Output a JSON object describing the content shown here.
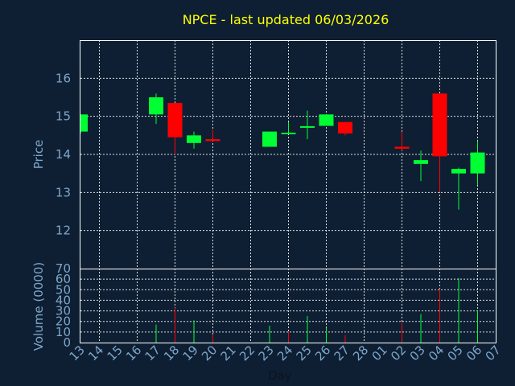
{
  "chart_data": {
    "type": "candlestick",
    "title": "NPCE - last updated 06/03/2026",
    "xlabel": "Day",
    "colors": {
      "background": "#0e1f33",
      "up": "#00ff33",
      "down": "#ff0000",
      "title": "#ffff00",
      "axis_text": "#7ea6c9",
      "grid": "#ffffff"
    },
    "categories": [
      "13",
      "14",
      "15",
      "16",
      "17",
      "18",
      "19",
      "20",
      "21",
      "22",
      "23",
      "24",
      "25",
      "26",
      "27",
      "28",
      "01",
      "02",
      "03",
      "04",
      "05",
      "06",
      "07"
    ],
    "price_panel": {
      "ylabel": "Price",
      "ylim": [
        11,
        17
      ],
      "yticks": [
        "12",
        "13",
        "14",
        "15",
        "16"
      ],
      "candles": [
        {
          "x": "13",
          "open": 14.6,
          "high": 15.05,
          "low": 14.55,
          "close": 15.05
        },
        {
          "x": "17",
          "open": 15.05,
          "high": 15.6,
          "low": 14.8,
          "close": 15.5
        },
        {
          "x": "18",
          "open": 15.35,
          "high": 15.35,
          "low": 14.0,
          "close": 14.45
        },
        {
          "x": "19",
          "open": 14.3,
          "high": 14.6,
          "low": 14.15,
          "close": 14.5
        },
        {
          "x": "20",
          "open": 14.4,
          "high": 14.65,
          "low": 14.35,
          "close": 14.35
        },
        {
          "x": "23",
          "open": 14.2,
          "high": 14.6,
          "low": 14.2,
          "close": 14.6
        },
        {
          "x": "24",
          "open": 14.55,
          "high": 14.85,
          "low": 14.55,
          "close": 14.55
        },
        {
          "x": "25",
          "open": 14.7,
          "high": 15.15,
          "low": 14.4,
          "close": 14.72
        },
        {
          "x": "26",
          "open": 14.75,
          "high": 15.05,
          "low": 14.75,
          "close": 15.05
        },
        {
          "x": "27",
          "open": 14.85,
          "high": 14.85,
          "low": 14.5,
          "close": 14.55
        },
        {
          "x": "02",
          "open": 14.2,
          "high": 14.6,
          "low": 14.1,
          "close": 14.15
        },
        {
          "x": "03",
          "open": 13.75,
          "high": 14.1,
          "low": 13.3,
          "close": 13.85
        },
        {
          "x": "04",
          "open": 15.6,
          "high": 15.6,
          "low": 13.0,
          "close": 13.95
        },
        {
          "x": "05",
          "open": 13.5,
          "high": 13.65,
          "low": 12.55,
          "close": 13.62
        },
        {
          "x": "06",
          "open": 13.5,
          "high": 14.35,
          "low": 13.2,
          "close": 14.05
        }
      ]
    },
    "volume_panel": {
      "ylabel": "Volume (0000)",
      "ylim": [
        0,
        70
      ],
      "yticks": [
        "0",
        "10",
        "20",
        "30",
        "40",
        "50",
        "60",
        "70"
      ],
      "bars": [
        {
          "x": "17",
          "value": 17,
          "direction": "up"
        },
        {
          "x": "18",
          "value": 33,
          "direction": "down"
        },
        {
          "x": "19",
          "value": 21,
          "direction": "up"
        },
        {
          "x": "20",
          "value": 8,
          "direction": "down"
        },
        {
          "x": "23",
          "value": 16,
          "direction": "up"
        },
        {
          "x": "24",
          "value": 10,
          "direction": "down"
        },
        {
          "x": "25",
          "value": 25,
          "direction": "up"
        },
        {
          "x": "26",
          "value": 14,
          "direction": "up"
        },
        {
          "x": "27",
          "value": 7,
          "direction": "down"
        },
        {
          "x": "02",
          "value": 19,
          "direction": "down"
        },
        {
          "x": "03",
          "value": 27,
          "direction": "up"
        },
        {
          "x": "04",
          "value": 51,
          "direction": "down"
        },
        {
          "x": "05",
          "value": 61,
          "direction": "up"
        },
        {
          "x": "06",
          "value": 30,
          "direction": "up"
        }
      ]
    }
  }
}
